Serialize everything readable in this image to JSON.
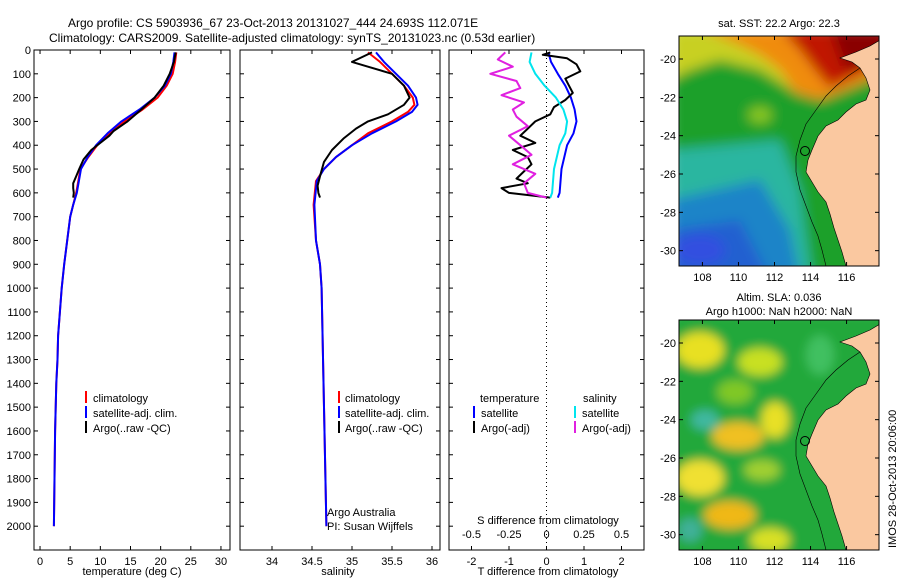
{
  "header": {
    "line1": "Argo profile: CS 5903936_67 23-Oct-2013 20131027_444 24.693S 112.071E",
    "line2": "Climatology: CARS2009. Satellite-adjusted climatology: synTS_20131023.nc (0.53d earlier)"
  },
  "colors": {
    "red": "#ff0000",
    "blue": "#0000ff",
    "black": "#000000",
    "cyan": "#00e5ee",
    "magenta": "#e020e0",
    "land": "#fac8a0"
  },
  "chart_data": [
    {
      "id": "temperature",
      "type": "line",
      "xlabel": "temperature (deg C)",
      "xlim": [
        -1,
        31.5
      ],
      "xticks": [
        0,
        5,
        10,
        15,
        20,
        25,
        30
      ],
      "ylim": [
        0,
        2100
      ],
      "yticks": [
        0,
        100,
        200,
        300,
        400,
        500,
        600,
        700,
        800,
        900,
        1000,
        1100,
        1200,
        1300,
        1400,
        1500,
        1600,
        1700,
        1800,
        1900,
        2000
      ],
      "y_inverted": true,
      "legend": [
        "climatology",
        "satellite-adj. clim.",
        "Argo(..raw -QC)"
      ],
      "series": [
        {
          "name": "climatology",
          "color": "red",
          "x": [
            22.6,
            22.4,
            22,
            21,
            19.5,
            17,
            14,
            11.5,
            9.5,
            8,
            6.7,
            6,
            5.5,
            5,
            4.5,
            4,
            3.6,
            3.3,
            3,
            2.9,
            2.7,
            2.5,
            2.4,
            2.3
          ],
          "y": [
            10,
            50,
            100,
            150,
            200,
            250,
            300,
            350,
            400,
            450,
            500,
            600,
            650,
            700,
            800,
            900,
            1000,
            1100,
            1200,
            1300,
            1400,
            1600,
            1800,
            2000
          ]
        },
        {
          "name": "satellite-adj. clim.",
          "color": "blue",
          "x": [
            22.3,
            22.1,
            21.7,
            20.7,
            19,
            16.5,
            13.5,
            11.2,
            9.3,
            7.9,
            6.8,
            6.1,
            5.5,
            5,
            4.5,
            4,
            3.6,
            3.3,
            3,
            2.9,
            2.7,
            2.5,
            2.4,
            2.3
          ],
          "y": [
            10,
            50,
            100,
            150,
            200,
            250,
            300,
            350,
            400,
            450,
            500,
            600,
            650,
            700,
            800,
            900,
            1000,
            1100,
            1200,
            1300,
            1400,
            1600,
            1800,
            2000
          ]
        },
        {
          "name": "Argo(..raw -QC)",
          "color": "black",
          "x": [
            22.5,
            22.2,
            21.5,
            20.5,
            19,
            16.8,
            14.5,
            12.2,
            11.5,
            10,
            8.5,
            7.2,
            6.5,
            6,
            5.5,
            5.5,
            5.6,
            5.5
          ],
          "y": [
            10,
            50,
            100,
            150,
            200,
            250,
            300,
            340,
            360,
            390,
            420,
            460,
            500,
            530,
            560,
            580,
            600,
            620
          ]
        }
      ]
    },
    {
      "id": "salinity",
      "type": "line",
      "xlabel": "salinity",
      "xlim": [
        33.6,
        36.1
      ],
      "xticks": [
        34,
        34.5,
        35,
        35.5,
        36
      ],
      "ylim": [
        0,
        2100
      ],
      "y_inverted": true,
      "legend": [
        "climatology",
        "satellite-adj. clim.",
        "Argo(..raw -QC)"
      ],
      "annotation": [
        "Argo Australia",
        "PI: Susan Wijffels"
      ],
      "series": [
        {
          "name": "climatology",
          "color": "red",
          "x": [
            35.2,
            35.35,
            35.5,
            35.65,
            35.76,
            35.78,
            35.7,
            35.5,
            35.2,
            35,
            34.8,
            34.65,
            34.55,
            34.52,
            34.55,
            34.6,
            34.62,
            34.65,
            34.68
          ],
          "y": [
            10,
            50,
            100,
            150,
            200,
            230,
            260,
            300,
            350,
            400,
            450,
            500,
            550,
            650,
            800,
            900,
            1000,
            1500,
            2000
          ]
        },
        {
          "name": "satellite-adj. clim.",
          "color": "blue",
          "x": [
            35.3,
            35.4,
            35.55,
            35.7,
            35.8,
            35.82,
            35.75,
            35.55,
            35.25,
            35,
            34.8,
            34.65,
            34.56,
            34.53,
            34.55,
            34.6,
            34.62,
            34.65,
            34.68
          ],
          "y": [
            10,
            50,
            100,
            150,
            200,
            230,
            260,
            300,
            350,
            400,
            450,
            500,
            550,
            650,
            800,
            900,
            1000,
            1500,
            2000
          ]
        },
        {
          "name": "Argo(..raw -QC)",
          "color": "black",
          "x": [
            35.25,
            35.0,
            35.2,
            35.5,
            35.65,
            35.72,
            35.65,
            35.45,
            35.2,
            35.05,
            34.9,
            34.75,
            34.65,
            34.6,
            34.57,
            34.58,
            34.6
          ],
          "y": [
            10,
            50,
            70,
            100,
            150,
            200,
            230,
            270,
            300,
            330,
            370,
            420,
            470,
            530,
            570,
            600,
            620
          ]
        }
      ]
    },
    {
      "id": "difference",
      "type": "line",
      "xlabel": "T difference from climatology",
      "xlabel_top": "S difference from climatology",
      "xlim": [
        -2.6,
        2.6
      ],
      "xticks": [
        -2,
        -1,
        0,
        1,
        2
      ],
      "xticks_top": [
        -0.5,
        -0.25,
        0,
        0.25,
        0.5
      ],
      "ylim": [
        0,
        2100
      ],
      "y_inverted": true,
      "legend_titles": [
        "temperature",
        "salinity"
      ],
      "legend": [
        "satellite",
        "Argo(-adj)",
        "satellite",
        "Argo(-adj)"
      ],
      "series": [
        {
          "name": "satellite",
          "group": "temperature",
          "color": "blue",
          "x": [
            0.05,
            0.12,
            0.3,
            0.5,
            0.65,
            0.75,
            0.8,
            0.72,
            0.55,
            0.4,
            0.35,
            0.3
          ],
          "y": [
            10,
            50,
            100,
            150,
            200,
            250,
            300,
            350,
            400,
            500,
            600,
            620
          ]
        },
        {
          "name": "Argo(-adj)",
          "group": "temperature",
          "color": "black",
          "x": [
            0.1,
            -0.1,
            0.55,
            0.8,
            0.9,
            0.5,
            0.6,
            0.7,
            0.5,
            0.2,
            0.1,
            -0.3,
            -0.5,
            -0.7,
            -0.3,
            -0.9,
            -0.5,
            -0.4,
            -0.6,
            -0.8,
            -0.5,
            -1.2,
            -1.0,
            0.1
          ],
          "y": [
            10,
            20,
            35,
            60,
            90,
            120,
            150,
            180,
            210,
            240,
            270,
            300,
            330,
            360,
            390,
            420,
            450,
            480,
            510,
            540,
            560,
            580,
            600,
            620
          ]
        },
        {
          "name": "satellite",
          "group": "salinity",
          "color": "cyan",
          "x": [
            -0.4,
            -0.45,
            -0.3,
            -0.05,
            0.25,
            0.45,
            0.55,
            0.5,
            0.35,
            0.2,
            0.15,
            0.1
          ],
          "y": [
            10,
            50,
            100,
            150,
            200,
            250,
            300,
            350,
            400,
            500,
            600,
            620
          ]
        },
        {
          "name": "Argo(-adj)",
          "group": "salinity",
          "color": "magenta",
          "x": [
            -1.1,
            -1.3,
            -0.9,
            -1.5,
            -0.8,
            -0.7,
            -1.2,
            -0.6,
            -0.9,
            -0.8,
            -0.5,
            -1.0,
            -0.7,
            -0.4,
            -0.9,
            -0.3,
            -0.6,
            -0.5,
            0.0
          ],
          "y": [
            10,
            40,
            70,
            100,
            130,
            160,
            190,
            220,
            250,
            280,
            320,
            360,
            400,
            440,
            480,
            520,
            560,
            600,
            620
          ]
        }
      ]
    },
    {
      "id": "sst-map",
      "type": "heatmap",
      "title": "sat. SST: 22.2  Argo: 22.3",
      "xticks": [
        108,
        110,
        112,
        114,
        116
      ],
      "yticks": [
        -20,
        -22,
        -24,
        -26,
        -28,
        -30
      ],
      "xlim": [
        106.7,
        117.8
      ],
      "ylim": [
        -30.8,
        -18.8
      ]
    },
    {
      "id": "sla-map",
      "type": "heatmap",
      "title": "Altim. SLA: 0.036",
      "subtitle": "Argo h1000: NaN h2000: NaN",
      "xticks": [
        108,
        110,
        112,
        114,
        116
      ],
      "yticks": [
        -20,
        -22,
        -24,
        -26,
        -28,
        -30
      ],
      "xlim": [
        106.7,
        117.8
      ],
      "ylim": [
        -30.8,
        -18.8
      ]
    }
  ],
  "credit": "IMOS 28-Oct-2013 20:06:00"
}
